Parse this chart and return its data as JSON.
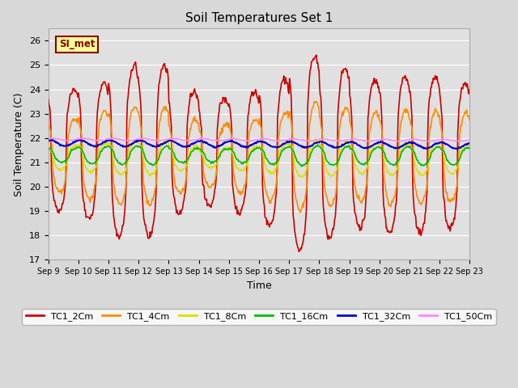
{
  "title": "Soil Temperatures Set 1",
  "xlabel": "Time",
  "ylabel": "Soil Temperature (C)",
  "ylim": [
    17.0,
    26.5
  ],
  "yticks": [
    17.0,
    18.0,
    19.0,
    20.0,
    21.0,
    22.0,
    23.0,
    24.0,
    25.0,
    26.0
  ],
  "annotation": "SI_met",
  "annotation_box_color": "#FFFF99",
  "annotation_box_edge": "#8B0000",
  "fig_bg_color": "#D8D8D8",
  "plot_bg_color": "#E0E0E0",
  "grid_color": "#FFFFFF",
  "series": [
    {
      "label": "TC1_2Cm",
      "color": "#CC0000",
      "lw": 1.2
    },
    {
      "label": "TC1_4Cm",
      "color": "#FF8C00",
      "lw": 1.2
    },
    {
      "label": "TC1_8Cm",
      "color": "#DDDD00",
      "lw": 1.2
    },
    {
      "label": "TC1_16Cm",
      "color": "#00BB00",
      "lw": 1.2
    },
    {
      "label": "TC1_32Cm",
      "color": "#0000CC",
      "lw": 1.5
    },
    {
      "label": "TC1_50Cm",
      "color": "#FF88FF",
      "lw": 1.2
    }
  ],
  "xtick_labels": [
    "Sep 9",
    "Sep 10",
    "Sep 11",
    "Sep 12",
    "Sep 13",
    "Sep 14",
    "Sep 15",
    "Sep 16",
    "Sep 17",
    "Sep 18",
    "Sep 19",
    "Sep 20",
    "Sep 21",
    "Sep 22",
    "Sep 23"
  ],
  "n_days": 14,
  "figsize": [
    6.4,
    4.8
  ],
  "dpi": 100
}
